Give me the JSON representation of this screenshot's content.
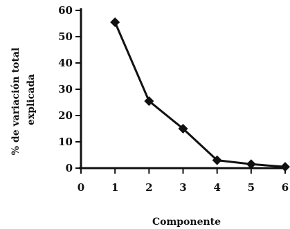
{
  "chart_data": {
    "type": "line",
    "title": "",
    "xlabel": "Componente",
    "ylabel_lines": [
      "% de variación total",
      "explicada"
    ],
    "x_ticks": [
      "0",
      "1",
      "2",
      "3",
      "4",
      "5",
      "6"
    ],
    "y_ticks": [
      "0",
      "10",
      "20",
      "30",
      "40",
      "50",
      "60"
    ],
    "xlim": [
      0,
      6
    ],
    "ylim": [
      0,
      60
    ],
    "grid": false,
    "series": [
      {
        "marker": "diamond",
        "color": "#111111",
        "x": [
          1,
          2,
          3,
          4,
          5,
          6
        ],
        "y": [
          55.5,
          25.5,
          15,
          3,
          1.5,
          0.5
        ]
      }
    ]
  }
}
